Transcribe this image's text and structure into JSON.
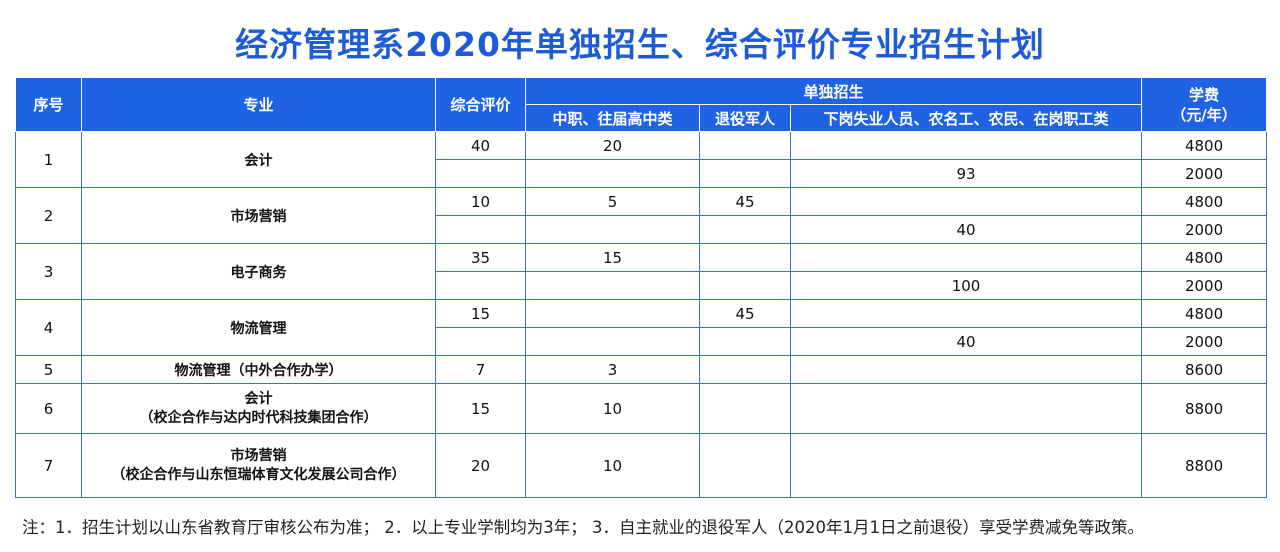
{
  "title": "经济管理系2020年单独招生、综合评价专业招生计划",
  "header": {
    "seq": "序号",
    "major": "专业",
    "comprehensive": "综合评价",
    "single": "单独招生",
    "sub_vocational": "中职、往届高中类",
    "sub_veterans": "退役军人",
    "sub_workers": "下岗失业人员、农名工、农民、在岗职工类",
    "fee_line1": "学费",
    "fee_line2": "（元/年）"
  },
  "rows": [
    {
      "seq": "1",
      "major": "会计",
      "r1": {
        "comp": "40",
        "voc": "20",
        "vet": "",
        "work": "",
        "fee": "4800"
      },
      "r2": {
        "comp": "",
        "voc": "",
        "vet": "",
        "work": "93",
        "fee": "2000"
      }
    },
    {
      "seq": "2",
      "major": "市场营销",
      "r1": {
        "comp": "10",
        "voc": "5",
        "vet": "45",
        "work": "",
        "fee": "4800"
      },
      "r2": {
        "comp": "",
        "voc": "",
        "vet": "",
        "work": "40",
        "fee": "2000"
      }
    },
    {
      "seq": "3",
      "major": "电子商务",
      "r1": {
        "comp": "35",
        "voc": "15",
        "vet": "",
        "work": "",
        "fee": "4800"
      },
      "r2": {
        "comp": "",
        "voc": "",
        "vet": "",
        "work": "100",
        "fee": "2000"
      }
    },
    {
      "seq": "4",
      "major": "物流管理",
      "r1": {
        "comp": "15",
        "voc": "",
        "vet": "45",
        "work": "",
        "fee": "4800"
      },
      "r2": {
        "comp": "",
        "voc": "",
        "vet": "",
        "work": "40",
        "fee": "2000"
      }
    },
    {
      "seq": "5",
      "major": "物流管理（中外合作办学）",
      "r1": {
        "comp": "7",
        "voc": "3",
        "vet": "",
        "work": "",
        "fee": "8600"
      }
    },
    {
      "seq": "6",
      "major": "会计",
      "major_note": "（校企合作与达内时代科技集团合作）",
      "r1": {
        "comp": "15",
        "voc": "10",
        "vet": "",
        "work": "",
        "fee": "8800"
      }
    },
    {
      "seq": "7",
      "major": "市场营销",
      "major_note": "（校企合作与山东恒瑞体育文化发展公司合作）",
      "r1": {
        "comp": "20",
        "voc": "10",
        "vet": "",
        "work": "",
        "fee": "8800"
      }
    }
  ],
  "note": "注：1．招生计划以山东省教育厅审核公布为准；  2．以上专业学制均为3年；  3．自主就业的退役军人（2020年1月1日之前退役）享受学费减免等政策。",
  "colors": {
    "header_bg": "#1f63e4",
    "title": "#1e5bd6",
    "border": "#2f6fe0"
  }
}
